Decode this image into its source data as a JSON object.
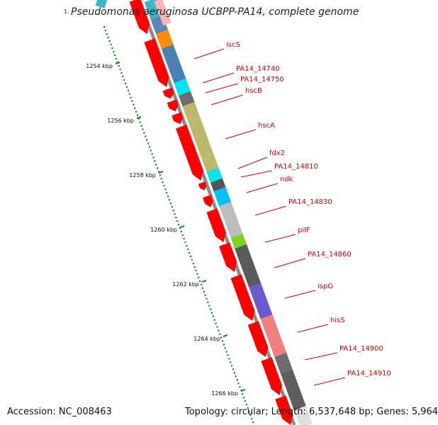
{
  "title": "Pseudomonas aeruginosa UCBPP-PA14, complete genome",
  "corner_tick": "1.",
  "accession_text": "Accession: NC_008463",
  "summary_text": "Topology: circular; Length: 6,537,648 bp; Genes: 5,964",
  "scale_labels": [
    "1254 kbp",
    "1256 kbp",
    "1258 kbp",
    "1260 kbp",
    "1262 kbp",
    "1264 kbp",
    "1266 kbp"
  ],
  "gene_labels": [
    "iscS",
    "PA14_14740",
    "PA14_14750",
    "hscB",
    "hscA",
    "fdx2",
    "PA14_14810",
    "ndk",
    "PA14_14830",
    "pilF",
    "PA14_14860",
    "ispG",
    "hisS",
    "PA14_14900",
    "PA14_14910"
  ],
  "colors": {
    "gene_arrow": "#ff0000",
    "label": "#d40000",
    "scale": "#1a8a1a",
    "backbone": "#8a8a8a"
  }
}
